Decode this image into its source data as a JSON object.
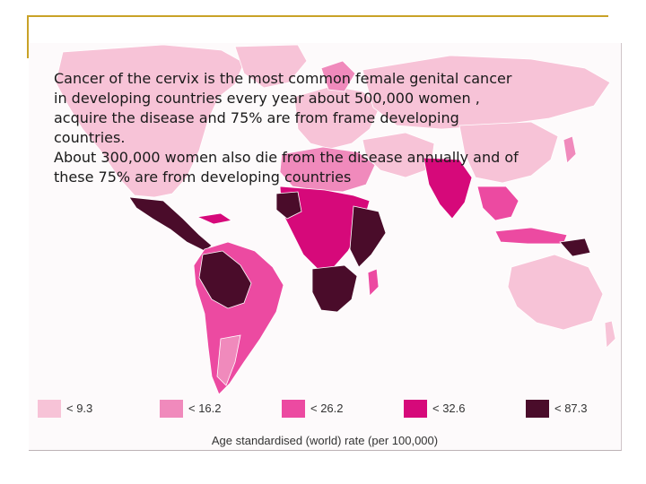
{
  "slide": {
    "accent_color": "#c9a227",
    "caption_lines": [
      "Cancer of the cervix is the most common female genital cancer",
      "in developing countries every year about 500,000 women ,",
      "acquire the disease and 75% are from frame developing",
      "countries.",
      "About 300,000 women also die from the disease annually and of",
      "these 75% are from developing countries"
    ]
  },
  "map": {
    "ocean_color": "#fdfafb",
    "legend": [
      {
        "label": "< 9.3",
        "color": "#f7c3d7"
      },
      {
        "label": "< 16.2",
        "color": "#f08abc"
      },
      {
        "label": "< 26.2",
        "color": "#ec4aa1"
      },
      {
        "label": "< 32.6",
        "color": "#d6097a"
      },
      {
        "label": "< 87.3",
        "color": "#4a0c2a"
      }
    ],
    "scale_caption": "Age standardised (world) rate (per 100,000)"
  }
}
